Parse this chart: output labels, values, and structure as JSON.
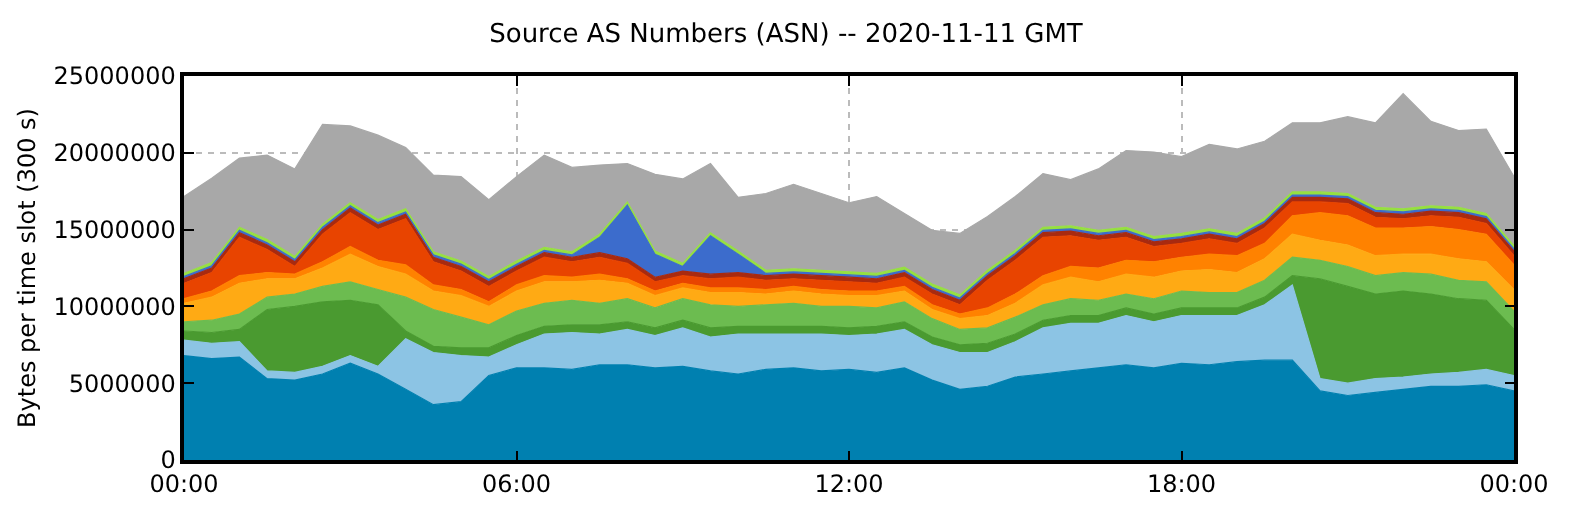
{
  "chart_data": {
    "type": "area",
    "stacked": true,
    "title": "Source AS Numbers (ASN) -- 2020-11-11 GMT",
    "ylabel": "Bytes per time slot (300 s)",
    "x": [
      0,
      0.5,
      1,
      1.5,
      2,
      2.5,
      3,
      3.5,
      4,
      4.5,
      5,
      5.5,
      6,
      6.5,
      7,
      7.5,
      8,
      8.5,
      9,
      9.5,
      10,
      10.5,
      11,
      11.5,
      12,
      12.5,
      13,
      13.5,
      14,
      14.5,
      15,
      15.5,
      16,
      16.5,
      17,
      17.5,
      18,
      18.5,
      19,
      19.5,
      20,
      20.5,
      21,
      21.5,
      22,
      22.5,
      23,
      23.5,
      24
    ],
    "xlim": [
      0,
      24
    ],
    "xticks": [
      {
        "value": 0,
        "label": "00:00"
      },
      {
        "value": 6,
        "label": "06:00"
      },
      {
        "value": 12,
        "label": "12:00"
      },
      {
        "value": 18,
        "label": "18:00"
      },
      {
        "value": 24,
        "label": "00:00"
      }
    ],
    "ylim": [
      0,
      25000000
    ],
    "yticks": [
      0,
      5000000,
      10000000,
      15000000,
      20000000,
      25000000
    ],
    "grid": true,
    "series": [
      {
        "color": "#0080b0",
        "values": [
          6800000.0,
          6600000.0,
          6700000.0,
          5300000.0,
          5200000.0,
          5600000.0,
          6300000.0,
          5600000.0,
          4600000.0,
          3600000.0,
          3800000.0,
          5500000.0,
          6000000.0,
          6000000.0,
          5900000.0,
          6200000.0,
          6200000.0,
          6000000.0,
          6100000.0,
          5800000.0,
          5600000.0,
          5900000.0,
          6000000.0,
          5800000.0,
          5900000.0,
          5700000.0,
          6000000.0,
          5200000.0,
          4600000.0,
          4800000.0,
          5400000.0,
          5600000.0,
          5800000.0,
          6000000.0,
          6200000.0,
          6000000.0,
          6300000.0,
          6200000.0,
          6400000.0,
          6500000.0,
          6500000.0,
          4500000.0,
          4200000.0,
          4400000.0,
          4600000.0,
          4800000.0,
          4800000.0,
          4900000.0,
          4500000.0
        ]
      },
      {
        "color": "#8cc4e4",
        "values": [
          1000000.0,
          1000000.0,
          1000000.0,
          500000.0,
          500000.0,
          500000.0,
          500000.0,
          500000.0,
          3300000.0,
          3400000.0,
          3000000.0,
          1200000.0,
          1500000.0,
          2200000.0,
          2400000.0,
          2000000.0,
          2300000.0,
          2100000.0,
          2500000.0,
          2200000.0,
          2600000.0,
          2300000.0,
          2200000.0,
          2400000.0,
          2200000.0,
          2500000.0,
          2500000.0,
          2300000.0,
          2400000.0,
          2200000.0,
          2300000.0,
          3000000.0,
          3100000.0,
          2900000.0,
          3200000.0,
          3000000.0,
          3100000.0,
          3200000.0,
          3000000.0,
          3600000.0,
          4900000.0,
          800000.0,
          800000.0,
          900000.0,
          800000.0,
          800000.0,
          900000.0,
          1000000.0,
          1000000.0
        ]
      },
      {
        "color": "#4a9a30",
        "values": [
          600000.0,
          700000.0,
          800000.0,
          4000000.0,
          4300000.0,
          4200000.0,
          3600000.0,
          4000000.0,
          500000.0,
          400000.0,
          500000.0,
          600000.0,
          600000.0,
          500000.0,
          500000.0,
          600000.0,
          500000.0,
          500000.0,
          500000.0,
          600000.0,
          500000.0,
          500000.0,
          500000.0,
          500000.0,
          500000.0,
          500000.0,
          500000.0,
          500000.0,
          500000.0,
          600000.0,
          500000.0,
          500000.0,
          500000.0,
          500000.0,
          500000.0,
          500000.0,
          500000.0,
          500000.0,
          500000.0,
          500000.0,
          600000.0,
          6500000.0,
          6300000.0,
          5500000.0,
          5600000.0,
          5200000.0,
          4800000.0,
          4500000.0,
          3000000.0
        ]
      },
      {
        "color": "#6cbc50",
        "values": [
          600000.0,
          800000.0,
          1000000.0,
          800000.0,
          800000.0,
          1000000.0,
          1200000.0,
          1000000.0,
          2200000.0,
          2400000.0,
          2000000.0,
          1500000.0,
          1600000.0,
          1500000.0,
          1600000.0,
          1400000.0,
          1500000.0,
          1300000.0,
          1400000.0,
          1500000.0,
          1300000.0,
          1400000.0,
          1500000.0,
          1300000.0,
          1400000.0,
          1200000.0,
          1300000.0,
          1200000.0,
          1000000.0,
          1000000.0,
          1100000.0,
          1000000.0,
          1100000.0,
          1000000.0,
          900000.0,
          1000000.0,
          1100000.0,
          1000000.0,
          1000000.0,
          1100000.0,
          1200000.0,
          1200000.0,
          1300000.0,
          1200000.0,
          1200000.0,
          1300000.0,
          1200000.0,
          1200000.0,
          1200000.0
        ]
      },
      {
        "color": "#ffaa14",
        "values": [
          1200000.0,
          1500000.0,
          2000000.0,
          1200000.0,
          1000000.0,
          1200000.0,
          1800000.0,
          1500000.0,
          1500000.0,
          1200000.0,
          1400000.0,
          1200000.0,
          1300000.0,
          1400000.0,
          1200000.0,
          1500000.0,
          1000000.0,
          800000.0,
          700000.0,
          800000.0,
          900000.0,
          700000.0,
          800000.0,
          800000.0,
          700000.0,
          800000.0,
          700000.0,
          600000.0,
          700000.0,
          800000.0,
          900000.0,
          1300000.0,
          1400000.0,
          1200000.0,
          1300000.0,
          1400000.0,
          1300000.0,
          1500000.0,
          1300000.0,
          1400000.0,
          1500000.0,
          1300000.0,
          1400000.0,
          1300000.0,
          1200000.0,
          1300000.0,
          1400000.0,
          1300000.0,
          1400000.0
        ]
      },
      {
        "color": "#ff8200",
        "values": [
          300000.0,
          400000.0,
          500000.0,
          400000.0,
          300000.0,
          400000.0,
          500000.0,
          400000.0,
          600000.0,
          400000.0,
          400000.0,
          300000.0,
          400000.0,
          400000.0,
          300000.0,
          400000.0,
          300000.0,
          300000.0,
          300000.0,
          300000.0,
          300000.0,
          300000.0,
          300000.0,
          300000.0,
          300000.0,
          300000.0,
          300000.0,
          300000.0,
          300000.0,
          500000.0,
          600000.0,
          600000.0,
          700000.0,
          900000.0,
          900000.0,
          1000000.0,
          900000.0,
          1000000.0,
          1100000.0,
          1000000.0,
          1200000.0,
          1800000.0,
          1900000.0,
          1800000.0,
          1700000.0,
          1800000.0,
          1900000.0,
          1800000.0,
          1600000.0
        ]
      },
      {
        "color": "#e84400",
        "values": [
          1000000.0,
          1200000.0,
          2500000.0,
          1500000.0,
          500000.0,
          1800000.0,
          2200000.0,
          2000000.0,
          3000000.0,
          1500000.0,
          1200000.0,
          1000000.0,
          900000.0,
          1200000.0,
          1000000.0,
          1100000.0,
          1000000.0,
          600000.0,
          500000.0,
          600000.0,
          700000.0,
          600000.0,
          500000.0,
          600000.0,
          600000.0,
          500000.0,
          600000.0,
          700000.0,
          600000.0,
          1800000.0,
          2200000.0,
          2500000.0,
          2000000.0,
          1800000.0,
          1500000.0,
          1000000.0,
          900000.0,
          1000000.0,
          800000.0,
          1000000.0,
          900000.0,
          700000.0,
          800000.0,
          700000.0,
          600000.0,
          700000.0,
          800000.0,
          700000.0,
          600000.0
        ]
      },
      {
        "color": "#a82a10",
        "values": [
          300000.0,
          300000.0,
          300000.0,
          300000.0,
          300000.0,
          300000.0,
          300000.0,
          300000.0,
          300000.0,
          300000.0,
          300000.0,
          300000.0,
          300000.0,
          300000.0,
          300000.0,
          300000.0,
          300000.0,
          300000.0,
          300000.0,
          300000.0,
          300000.0,
          300000.0,
          300000.0,
          300000.0,
          300000.0,
          300000.0,
          300000.0,
          300000.0,
          300000.0,
          300000.0,
          300000.0,
          300000.0,
          300000.0,
          300000.0,
          300000.0,
          300000.0,
          300000.0,
          300000.0,
          300000.0,
          300000.0,
          300000.0,
          300000.0,
          300000.0,
          300000.0,
          300000.0,
          300000.0,
          300000.0,
          300000.0,
          300000.0
        ]
      },
      {
        "color": "#3c6ccc",
        "values": [
          150000.0,
          150000.0,
          150000.0,
          150000.0,
          150000.0,
          150000.0,
          150000.0,
          150000.0,
          150000.0,
          150000.0,
          150000.0,
          150000.0,
          150000.0,
          150000.0,
          150000.0,
          1000000.0,
          3500000.0,
          1500000.0,
          300000.0,
          2500000.0,
          1200000.0,
          150000.0,
          150000.0,
          150000.0,
          150000.0,
          150000.0,
          150000.0,
          150000.0,
          150000.0,
          150000.0,
          150000.0,
          150000.0,
          150000.0,
          150000.0,
          150000.0,
          150000.0,
          150000.0,
          150000.0,
          150000.0,
          150000.0,
          150000.0,
          150000.0,
          150000.0,
          150000.0,
          150000.0,
          150000.0,
          150000.0,
          150000.0,
          150000.0
        ]
      },
      {
        "color": "#96e040",
        "values": [
          200000.0,
          200000.0,
          200000.0,
          200000.0,
          200000.0,
          200000.0,
          200000.0,
          200000.0,
          200000.0,
          200000.0,
          200000.0,
          200000.0,
          200000.0,
          200000.0,
          200000.0,
          200000.0,
          200000.0,
          200000.0,
          200000.0,
          200000.0,
          200000.0,
          200000.0,
          200000.0,
          200000.0,
          200000.0,
          200000.0,
          200000.0,
          200000.0,
          200000.0,
          200000.0,
          200000.0,
          200000.0,
          200000.0,
          200000.0,
          200000.0,
          200000.0,
          200000.0,
          200000.0,
          200000.0,
          200000.0,
          200000.0,
          200000.0,
          200000.0,
          200000.0,
          200000.0,
          200000.0,
          200000.0,
          200000.0,
          200000.0
        ]
      },
      {
        "color": "#a8a8a8",
        "values": [
          5000000.0,
          5500000.0,
          4500000.0,
          5500000.0,
          5700000.0,
          6500000.0,
          5000000.0,
          5500000.0,
          4000000.0,
          5000000.0,
          5500000.0,
          5000000.0,
          5500000.0,
          6000000.0,
          5500000.0,
          4500000.0,
          2500000.0,
          5000000.0,
          5500000.0,
          4500000.0,
          3500000.0,
          5000000.0,
          5500000.0,
          5000000.0,
          4500000.0,
          5000000.0,
          3500000.0,
          3500000.0,
          4000000.0,
          3500000.0,
          3500000.0,
          3500000.0,
          3000000.0,
          4000000.0,
          5000000.0,
          5500000.0,
          5000000.0,
          5500000.0,
          5500000.0,
          5000000.0,
          4500000.0,
          4500000.0,
          5000000.0,
          5500000.0,
          7500000.0,
          5500000.0,
          5000000.0,
          5500000.0,
          4500000.0
        ]
      }
    ]
  }
}
